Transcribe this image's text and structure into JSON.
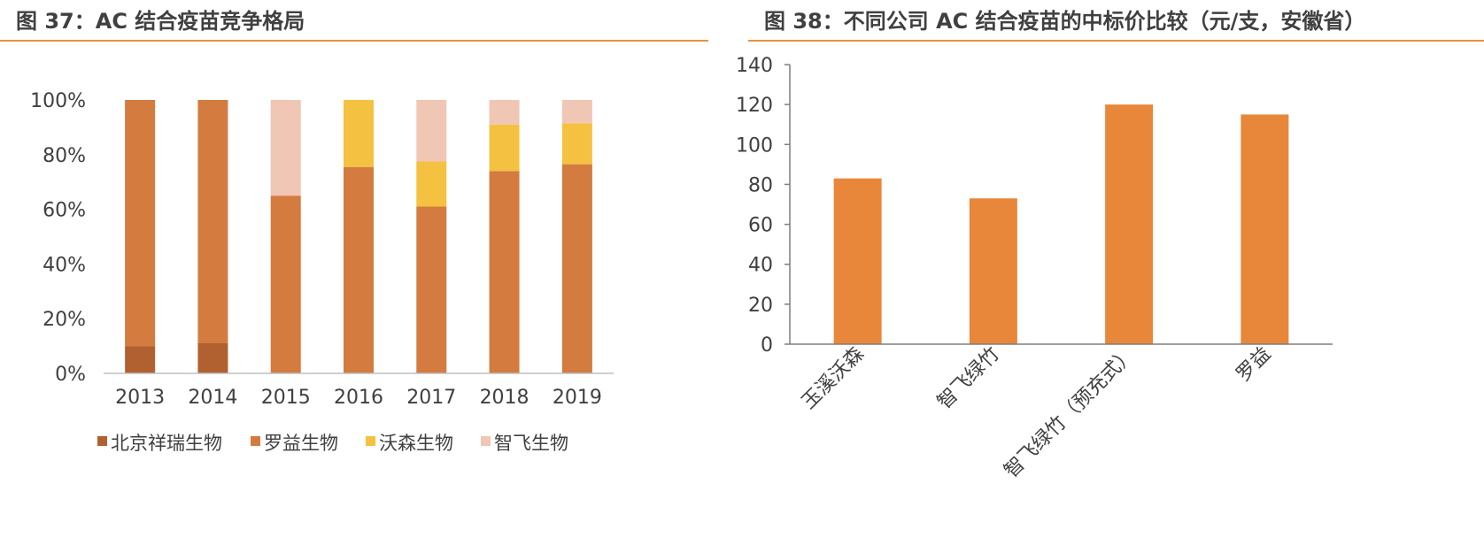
{
  "charts": {
    "left_title": "图 37：AC 结合疫苗竞争格局",
    "right_title": "图 38：不同公司 AC 结合疫苗的中标价比较（元/支，安徽省）"
  },
  "colors": {
    "rule": "#e8913c",
    "axis": "#bfbfbf",
    "text": "#404040"
  },
  "chart_data": [
    {
      "type": "bar",
      "stacked": true,
      "title": "图 37：AC 结合疫苗竞争格局",
      "categories": [
        "2013",
        "2014",
        "2015",
        "2016",
        "2017",
        "2018",
        "2019"
      ],
      "ylim": [
        0,
        100
      ],
      "yticks": [
        "0%",
        "20%",
        "40%",
        "60%",
        "80%",
        "100%"
      ],
      "legend_position": "bottom",
      "series": [
        {
          "name": "北京祥瑞生物",
          "color": "#b0612f",
          "values": [
            10,
            11,
            0,
            0,
            0,
            0,
            0
          ]
        },
        {
          "name": "罗益生物",
          "color": "#d47b3f",
          "values": [
            90,
            89,
            65,
            75.5,
            61,
            74,
            76.5
          ]
        },
        {
          "name": "沃森生物",
          "color": "#f5c141",
          "values": [
            0,
            0,
            0,
            24.5,
            16.5,
            17,
            15
          ]
        },
        {
          "name": "智飞生物",
          "color": "#f0c6b5",
          "values": [
            0,
            0,
            35,
            0,
            22.5,
            9,
            8.5
          ]
        }
      ]
    },
    {
      "type": "bar",
      "title": "图 38：不同公司 AC 结合疫苗的中标价比较（元/支，安徽省）",
      "categories": [
        "玉溪沃森",
        "智飞绿竹",
        "智飞绿竹（预充式）",
        "罗益"
      ],
      "values": [
        83,
        73,
        120,
        115
      ],
      "color": "#e8873a",
      "ylim": [
        0,
        140
      ],
      "yticks": [
        "0",
        "20",
        "40",
        "60",
        "80",
        "100",
        "120",
        "140"
      ]
    }
  ]
}
